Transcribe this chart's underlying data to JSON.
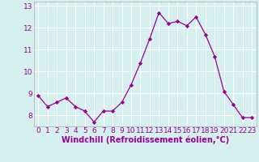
{
  "x": [
    0,
    1,
    2,
    3,
    4,
    5,
    6,
    7,
    8,
    9,
    10,
    11,
    12,
    13,
    14,
    15,
    16,
    17,
    18,
    19,
    20,
    21,
    22,
    23
  ],
  "y": [
    8.9,
    8.4,
    8.6,
    8.8,
    8.4,
    8.2,
    7.7,
    8.2,
    8.2,
    8.6,
    9.4,
    10.4,
    11.5,
    12.7,
    12.2,
    12.3,
    12.1,
    12.5,
    11.7,
    10.7,
    9.1,
    8.5,
    7.9,
    7.9
  ],
  "line_color": "#990099",
  "marker": "D",
  "marker_size": 2.2,
  "bg_color": "#d6f0f0",
  "grid_color": "#ffffff",
  "xlabel": "Windchill (Refroidissement éolien,°C)",
  "xlabel_color": "#990099",
  "tick_color": "#990099",
  "ylim": [
    7.5,
    13.2
  ],
  "xlim": [
    -0.5,
    23.5
  ],
  "yticks": [
    8,
    9,
    10,
    11,
    12,
    13
  ],
  "xticks": [
    0,
    1,
    2,
    3,
    4,
    5,
    6,
    7,
    8,
    9,
    10,
    11,
    12,
    13,
    14,
    15,
    16,
    17,
    18,
    19,
    20,
    21,
    22,
    23
  ],
  "xtick_labels": [
    "0",
    "1",
    "2",
    "3",
    "4",
    "5",
    "6",
    "7",
    "8",
    "9",
    "10",
    "11",
    "12",
    "13",
    "14",
    "15",
    "16",
    "17",
    "18",
    "19",
    "20",
    "21",
    "22",
    "23"
  ],
  "ytick_labels": [
    "8",
    "9",
    "10",
    "11",
    "12",
    "13"
  ],
  "font_size": 6.5
}
